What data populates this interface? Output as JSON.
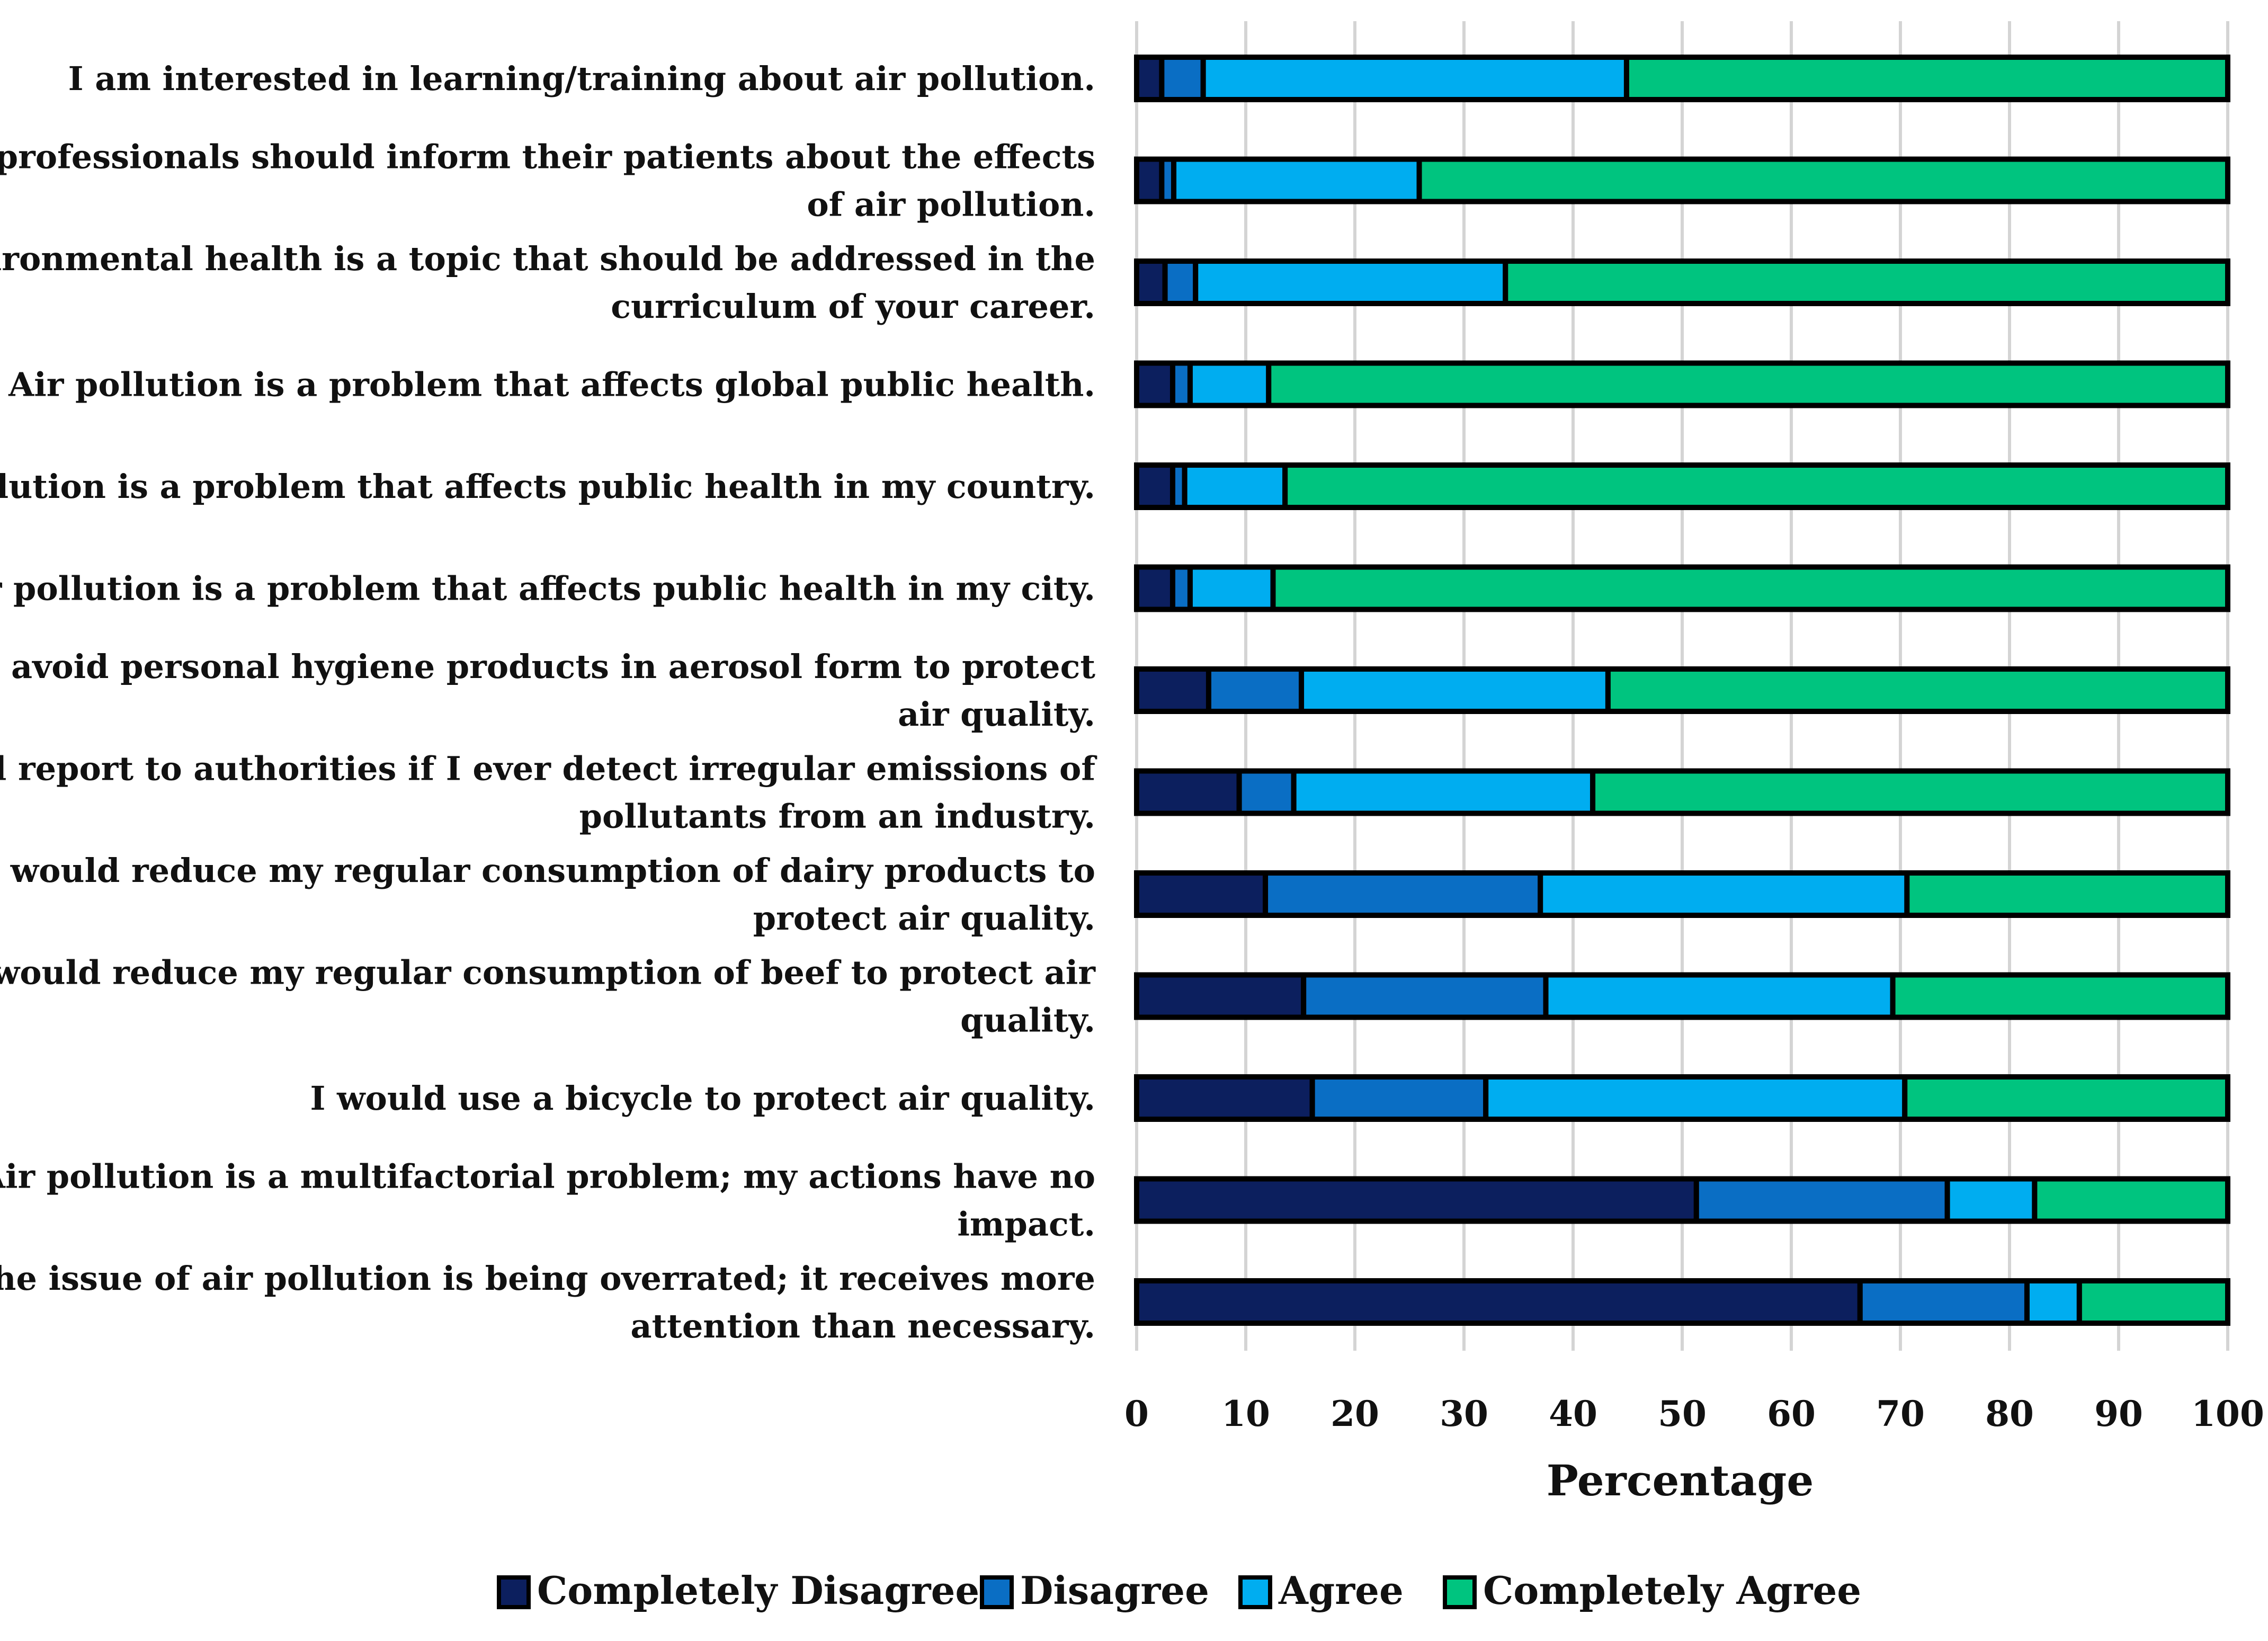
{
  "chart_data": {
    "type": "bar",
    "orientation": "horizontal",
    "stacked": true,
    "title": "",
    "xlabel": "Percentage",
    "ylabel": "",
    "xlim": [
      0,
      100
    ],
    "xticks": [
      0,
      10,
      20,
      30,
      40,
      50,
      60,
      70,
      80,
      90,
      100
    ],
    "grid": true,
    "legend_position": "bottom",
    "categories": [
      [
        "I am interested in learning/training about air pollution."
      ],
      [
        "Health professionals should inform their patients about the effects",
        "of air pollution."
      ],
      [
        "Environmental health is a topic that should be addressed in the",
        "curriculum of your career."
      ],
      [
        "Air pollution is a problem that affects global public health."
      ],
      [
        "Air pollution is a problem that affects public health in my country."
      ],
      [
        "Air pollution is a problem that affects public health in my city."
      ],
      [
        "I would avoid personal hygiene products in aerosol form to protect",
        "air quality."
      ],
      [
        "I would report to authorities if I ever detect irregular emissions of",
        "pollutants from an industry."
      ],
      [
        "I would reduce my regular consumption of dairy products to",
        "protect air quality."
      ],
      [
        "I would reduce my regular consumption of beef to protect air",
        "quality."
      ],
      [
        "I would use a bicycle to protect air quality."
      ],
      [
        "Air pollution is a multifactorial problem; my actions have no",
        "impact."
      ],
      [
        "The issue of air pollution is being overrated; it receives more",
        "attention than necessary."
      ]
    ],
    "series": [
      {
        "name": "Completely Disagree",
        "color": "#0c1f5e",
        "values": [
          2.3,
          2.3,
          2.6,
          3.3,
          3.3,
          3.3,
          6.6,
          9.4,
          11.8,
          15.3,
          16.1,
          51.3,
          66.3
        ]
      },
      {
        "name": "Disagree",
        "color": "#0a6ec4",
        "values": [
          3.8,
          1.1,
          2.8,
          1.6,
          1.1,
          1.6,
          8.5,
          5.0,
          25.2,
          22.2,
          15.9,
          23.0,
          15.3
        ]
      },
      {
        "name": "Agree",
        "color": "#00adf0",
        "values": [
          38.8,
          22.5,
          28.4,
          7.2,
          9.2,
          7.6,
          28.1,
          27.4,
          33.6,
          31.8,
          38.4,
          8.0,
          4.8
        ]
      },
      {
        "name": "Completely Agree",
        "color": "#00c47f",
        "values": [
          55.1,
          74.1,
          66.2,
          87.9,
          86.4,
          87.5,
          56.8,
          58.2,
          29.4,
          30.7,
          29.6,
          17.7,
          13.6
        ]
      }
    ]
  }
}
